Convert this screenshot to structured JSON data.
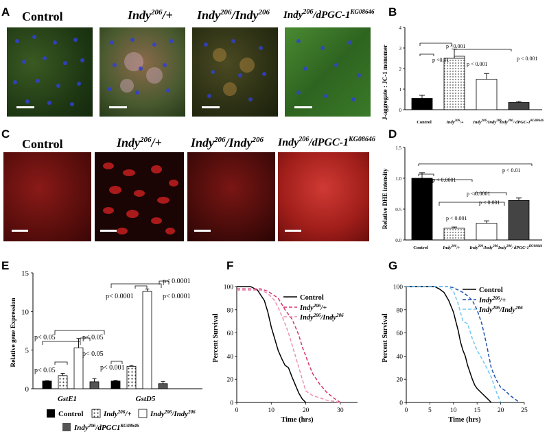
{
  "panelA": {
    "label": "A",
    "titles": [
      "Control",
      "Indy206/+",
      "Indy206/Indy206",
      "Indy206/dPGC-1KG08646"
    ]
  },
  "panelC": {
    "label": "C",
    "titles": [
      "Control",
      "Indy206/+",
      "Indy206/Indy206",
      "Indy206/dPGC-1KG08646"
    ]
  },
  "panelB": {
    "label": "B",
    "chart_data": {
      "type": "bar",
      "ylabel": "J-aggregate : JC-1 monomer",
      "ylim": [
        0,
        4
      ],
      "yticks": [
        "0",
        "1",
        "2",
        "3",
        "4"
      ],
      "categories": [
        "Control",
        "Indy206/+",
        "Indy206/Indy206",
        "Indy206/ dPGC-1KG08646"
      ],
      "values": [
        0.55,
        2.5,
        1.48,
        0.35
      ],
      "errors": [
        0.15,
        0.45,
        0.28,
        0.06
      ],
      "annotations": [
        "p <0.001",
        "p <0.01",
        "p < 0.001",
        "p < 0.001"
      ]
    }
  },
  "panelD": {
    "label": "D",
    "chart_data": {
      "type": "bar",
      "ylabel": "Relative DHE intensity",
      "ylim": [
        0,
        1.5
      ],
      "yticks": [
        "0.0",
        "0.5",
        "1.0",
        "1.5"
      ],
      "categories": [
        "Control",
        "Indy206/+",
        "Indy206/Indy206",
        "Indy206/ dPGC-1KG08646"
      ],
      "values": [
        1.0,
        0.19,
        0.27,
        0.64
      ],
      "errors": [
        0.09,
        0.02,
        0.04,
        0.04
      ],
      "annotations": [
        "p < 0.01",
        "p < 0.0001",
        "p < 0.0001",
        "p < 0.001",
        "p < 0.001"
      ]
    }
  },
  "panelE": {
    "label": "E",
    "chart_data": {
      "type": "bar",
      "ylabel": "Relative gene Expression",
      "ylim": [
        0,
        15
      ],
      "yticks": [
        "0",
        "5",
        "10",
        "15"
      ],
      "categories": [
        "GstE1",
        "GstD5"
      ],
      "series": [
        {
          "name": "Control",
          "values": [
            1.0,
            1.0
          ],
          "errors": [
            0.05,
            0.08
          ]
        },
        {
          "name": "Indy206/+",
          "values": [
            1.7,
            2.9
          ],
          "errors": [
            0.3,
            0.1
          ]
        },
        {
          "name": "Indy206/Indy206",
          "values": [
            5.3,
            12.6
          ],
          "errors": [
            1.2,
            0.3
          ]
        },
        {
          "name": "Indy206/dPGC1KG08646",
          "values": [
            0.9,
            0.65
          ],
          "errors": [
            0.4,
            0.3
          ]
        }
      ],
      "annotations": [
        "p< 0.05",
        "p< 0.05",
        "p< 0.05",
        "p< 0.05",
        "p< 0.0001",
        "p< 0.001",
        "p< 0.0001",
        "p< 0.0001"
      ]
    }
  },
  "panelF": {
    "label": "F",
    "chart_data": {
      "type": "line",
      "xlabel": "Time (hrs)",
      "ylabel": "Percent Survival",
      "xlim": [
        0,
        35
      ],
      "ylim": [
        0,
        100
      ],
      "xticks": [
        "0",
        "10",
        "20",
        "30"
      ],
      "yticks": [
        "0",
        "20",
        "40",
        "60",
        "80",
        "100"
      ],
      "series": [
        {
          "name": "Control",
          "color": "#000000",
          "x": [
            0,
            4,
            6,
            8,
            9,
            10,
            11,
            12,
            13,
            14,
            15,
            16,
            17,
            18,
            19,
            20
          ],
          "y": [
            100,
            100,
            97,
            88,
            78,
            65,
            55,
            45,
            38,
            32,
            30,
            22,
            15,
            8,
            3,
            0
          ]
        },
        {
          "name": "Indy206/+",
          "color": "#d6336c",
          "x": [
            0,
            7,
            9,
            11,
            12,
            13,
            14,
            15,
            16,
            17,
            18,
            19,
            20,
            21,
            22,
            24,
            26,
            28,
            30
          ],
          "y": [
            98,
            98,
            96,
            92,
            90,
            85,
            80,
            76,
            72,
            65,
            58,
            48,
            40,
            32,
            25,
            16,
            9,
            4,
            0
          ]
        },
        {
          "name": "Indy206/Indy206",
          "color": "#ec8fb5",
          "x": [
            0,
            7,
            9,
            11,
            12,
            13,
            14,
            15,
            16,
            17,
            18,
            19,
            20,
            22,
            24,
            26,
            28,
            30
          ],
          "y": [
            97,
            97,
            94,
            88,
            82,
            75,
            68,
            60,
            50,
            40,
            30,
            20,
            10,
            6,
            4,
            2,
            1,
            0
          ]
        }
      ]
    }
  },
  "panelG": {
    "label": "G",
    "chart_data": {
      "type": "line",
      "xlabel": "Time (hrs)",
      "ylabel": "Percent Survival",
      "xlim": [
        0,
        25
      ],
      "ylim": [
        0,
        100
      ],
      "xticks": [
        "0",
        "5",
        "10",
        "15",
        "20",
        "25"
      ],
      "yticks": [
        "0",
        "20",
        "40",
        "60",
        "80",
        "100"
      ],
      "series": [
        {
          "name": "Control",
          "color": "#000000",
          "x": [
            0,
            6,
            7,
            8,
            9,
            10,
            10.5,
            11,
            11.5,
            12,
            12.5,
            13,
            13.5,
            14,
            14.5,
            15,
            16,
            17,
            18
          ],
          "y": [
            100,
            100,
            98,
            95,
            88,
            78,
            70,
            62,
            52,
            45,
            40,
            32,
            26,
            20,
            15,
            12,
            8,
            4,
            0
          ]
        },
        {
          "name": "Indy206/+",
          "color": "#1f4fae",
          "x": [
            0,
            9,
            10,
            11,
            12,
            13,
            14,
            15,
            16,
            17,
            18,
            19,
            20,
            21,
            22,
            23,
            24
          ],
          "y": [
            100,
            100,
            99,
            97,
            95,
            92,
            88,
            80,
            68,
            50,
            30,
            20,
            13,
            10,
            6,
            3,
            0
          ]
        },
        {
          "name": "Indy206/Indy206",
          "color": "#6ec6f0",
          "x": [
            0,
            9,
            10,
            11,
            12,
            13,
            14,
            15,
            16,
            17,
            18,
            19,
            20
          ],
          "y": [
            100,
            100,
            96,
            85,
            70,
            68,
            55,
            45,
            38,
            30,
            22,
            10,
            0
          ]
        }
      ]
    }
  },
  "legendE": [
    {
      "name": "Control",
      "color": "#000000",
      "pattern": "solid"
    },
    {
      "name": "Indy206/+",
      "color": "#ffffff",
      "pattern": "dots"
    },
    {
      "name": "Indy206/Indy206",
      "color": "#ffffff",
      "pattern": "open"
    },
    {
      "name": "Indy206/dPGC1KG08646",
      "color": "#555555",
      "pattern": "solid"
    }
  ]
}
